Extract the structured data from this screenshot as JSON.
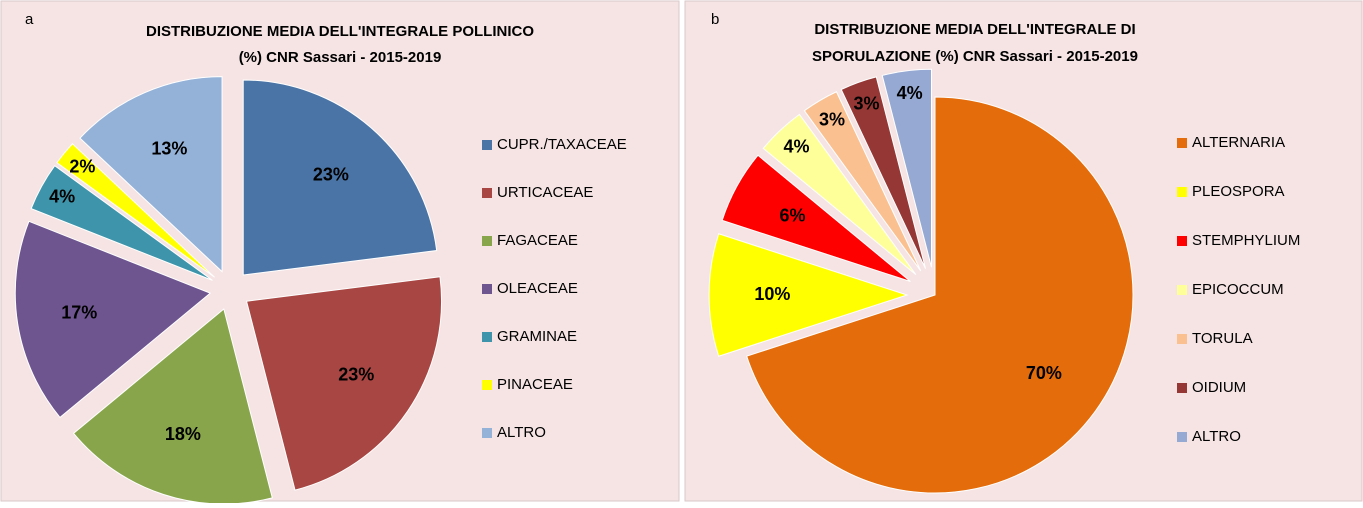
{
  "chart_data": [
    {
      "type": "pie",
      "panel": "a",
      "title": [
        "DISTRIBUZIONE MEDIA DELL'INTEGRALE POLLINICO",
        "(%) CNR Sassari - 2015-2019"
      ],
      "categories": [
        "CUPR./TAXACEAE",
        "URTICACEAE",
        "FAGACEAE",
        "OLEACEAE",
        "GRAMINAE",
        "PINACEAE",
        "ALTRO"
      ],
      "values": [
        23,
        23,
        18,
        17,
        4,
        2,
        13
      ],
      "value_labels": [
        "23%",
        "23%",
        "18%",
        "17%",
        "4%",
        "2%",
        "13%"
      ],
      "colors": [
        "#4a74a6",
        "#a84643",
        "#88a54b",
        "#6e5590",
        "#3e95ab",
        "#ffff00",
        "#94b2d8"
      ],
      "legend": "right"
    },
    {
      "type": "pie",
      "panel": "b",
      "title": [
        "DISTRIBUZIONE MEDIA DELL'INTEGRALE DI",
        "SPORULAZIONE  (%)   CNR Sassari - 2015-2019"
      ],
      "categories": [
        "ALTERNARIA",
        "PLEOSPORA",
        "STEMPHYLIUM",
        "EPICOCCUM",
        "TORULA",
        "OIDIUM",
        "ALTRO"
      ],
      "values": [
        70,
        10,
        6,
        4,
        3,
        3,
        4
      ],
      "value_labels": [
        "70%",
        "10%",
        "6%",
        "4%",
        "3%",
        "3%",
        "4%"
      ],
      "colors": [
        "#e46c0a",
        "#ffff00",
        "#ff0000",
        "#ffff99",
        "#fac090",
        "#953735",
        "#95a9d3"
      ],
      "legend": "right"
    }
  ]
}
